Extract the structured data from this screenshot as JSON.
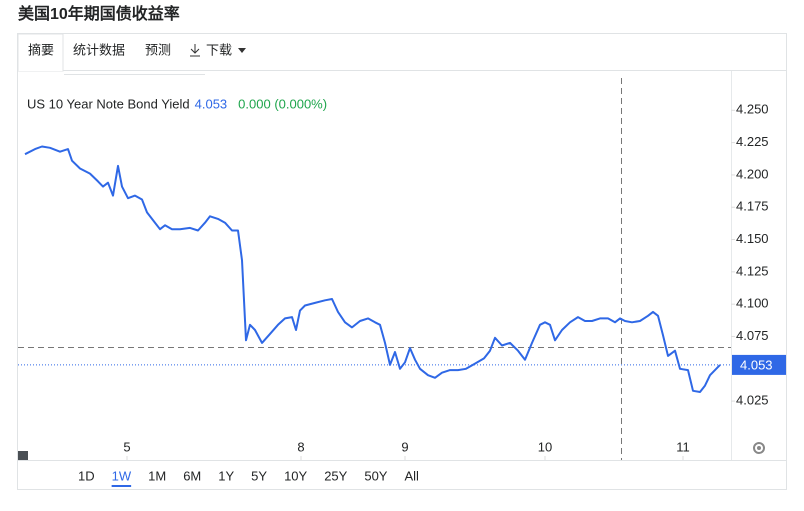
{
  "page_title": "美国10年期国债收益率",
  "tabs": [
    "摘要",
    "统计数据",
    "预测",
    "下载"
  ],
  "active_tab": 0,
  "chart_data": {
    "type": "line",
    "series": [
      {
        "name": "US 10 Year Note Bond Yield",
        "color": "#2f68e6",
        "x": [
          1.4,
          3.4,
          4.8,
          6.4,
          8.4,
          10,
          10.8,
          12.4,
          14.4,
          16,
          17,
          18,
          19,
          20,
          20.8,
          22,
          23.4,
          24.8,
          25.8,
          27.4,
          28.4,
          29.4,
          30.8,
          32.4,
          34.4,
          36,
          37.4,
          38.4,
          40,
          41.4,
          42.8,
          44,
          44.8,
          45.6,
          46.4,
          47.4,
          48.8,
          50.4,
          52,
          53.4,
          54.8,
          55.6,
          56.4,
          57.4,
          59.4,
          61.4,
          62.8,
          64,
          65.4,
          66.8,
          68.4,
          70,
          71.4,
          72.4,
          73.4,
          74.4,
          75.4,
          76.4,
          77.4,
          78.4,
          79.4,
          80.4,
          82,
          83.4,
          84.8,
          86.4,
          88,
          89.6,
          91.4,
          93.2,
          94.4,
          95.4,
          96.8,
          98.4,
          100,
          101.4,
          102.8,
          104.4,
          105.4,
          106.4,
          107.4,
          108.8,
          110.4,
          112,
          113.4,
          114.8,
          116.4,
          118,
          119.4,
          120.4,
          121.4,
          122.8,
          124.4,
          126,
          127,
          128,
          129,
          130,
          131.4,
          132.4,
          134,
          135,
          136.4,
          137.4,
          138.4,
          139.4,
          140.4
        ],
        "values": [
          4.216,
          4.22,
          4.222,
          4.221,
          4.218,
          4.22,
          4.211,
          4.205,
          4.201,
          4.195,
          4.191,
          4.194,
          4.184,
          4.207,
          4.191,
          4.182,
          4.184,
          4.181,
          4.171,
          4.163,
          4.158,
          4.161,
          4.158,
          4.158,
          4.159,
          4.157,
          4.163,
          4.168,
          4.166,
          4.163,
          4.157,
          4.157,
          4.134,
          4.072,
          4.084,
          4.08,
          4.07,
          4.077,
          4.084,
          4.089,
          4.09,
          4.08,
          4.095,
          4.099,
          4.101,
          4.103,
          4.104,
          4.094,
          4.086,
          4.082,
          4.087,
          4.089,
          4.086,
          4.084,
          4.07,
          4.053,
          4.063,
          4.05,
          4.055,
          4.066,
          4.057,
          4.05,
          4.045,
          4.043,
          4.047,
          4.049,
          4.049,
          4.05,
          4.054,
          4.058,
          4.064,
          4.074,
          4.068,
          4.07,
          4.064,
          4.057,
          4.07,
          4.084,
          4.086,
          4.084,
          4.072,
          4.08,
          4.086,
          4.09,
          4.087,
          4.087,
          4.089,
          4.089,
          4.086,
          4.089,
          4.087,
          4.086,
          4.087,
          4.091,
          4.094,
          4.091,
          4.076,
          4.06,
          4.064,
          4.05,
          4.049,
          4.033,
          4.032,
          4.037,
          4.045,
          4.049,
          4.053
        ]
      }
    ],
    "last_value": {
      "value": 4.053,
      "label": "4.053"
    },
    "change": "0.000 (0.000%)",
    "xlim": [
      0,
      142.4
    ],
    "xticks": [
      {
        "value": 21.8,
        "label": "5"
      },
      {
        "value": 56.6,
        "label": "8"
      },
      {
        "value": 77.4,
        "label": "9"
      },
      {
        "value": 105.4,
        "label": "10"
      },
      {
        "value": 133,
        "label": "11"
      }
    ],
    "ylim": [
      4.0,
      4.275
    ],
    "yticks": [
      4.025,
      4.075,
      {
        "value": 4.1,
        "label": "4.100"
      },
      4.125,
      {
        "value": 4.15,
        "label": "4.150"
      },
      4.175,
      {
        "value": 4.2,
        "label": "4.200"
      },
      4.225,
      {
        "value": 4.25,
        "label": "4.250"
      }
    ]
  },
  "range_buttons": [
    "1D",
    "1W",
    "1M",
    "6M",
    "1Y",
    "5Y",
    "10Y",
    "25Y",
    "50Y",
    "All"
  ],
  "active_range": 1
}
